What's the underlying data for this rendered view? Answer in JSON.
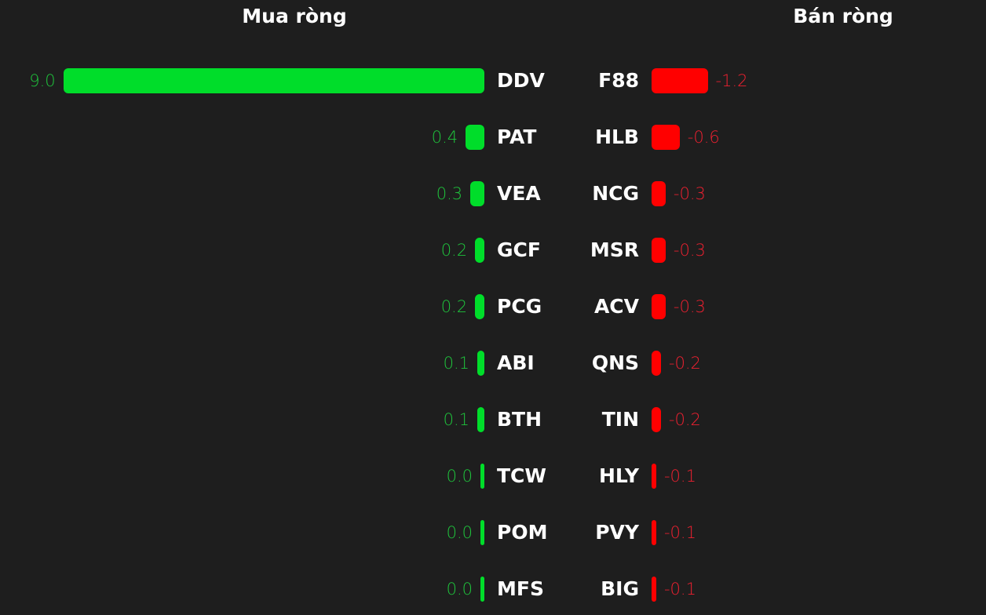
{
  "chart_data": [
    {
      "type": "bar",
      "orientation": "horizontal",
      "title": "Mua ròng",
      "color": "#00dd2a",
      "label_color": "#1fc43c",
      "categories": [
        "DDV",
        "PAT",
        "VEA",
        "GCF",
        "PCG",
        "ABI",
        "BTH",
        "TCW",
        "POM",
        "MFS"
      ],
      "values": [
        9.0,
        0.4,
        0.3,
        0.2,
        0.2,
        0.1,
        0.1,
        0.0,
        0.0,
        0.0
      ],
      "value_labels": [
        "9.0",
        "0.4",
        "0.3",
        "0.2",
        "0.2",
        "0.1",
        "0.1",
        "0.0",
        "0.0",
        "0.0"
      ]
    },
    {
      "type": "bar",
      "orientation": "horizontal",
      "title": "Bán ròng",
      "color": "#ff0000",
      "label_color": "#ee2030",
      "categories": [
        "F88",
        "HLB",
        "NCG",
        "MSR",
        "ACV",
        "QNS",
        "TIN",
        "HLY",
        "PVY",
        "BIG"
      ],
      "values": [
        -1.2,
        -0.6,
        -0.3,
        -0.3,
        -0.3,
        -0.2,
        -0.2,
        -0.1,
        -0.1,
        -0.1
      ],
      "value_labels": [
        "-1.2",
        "-0.6",
        "-0.3",
        "-0.3",
        "-0.3",
        "-0.2",
        "-0.2",
        "-0.1",
        "-0.1",
        "-0.1"
      ]
    }
  ]
}
